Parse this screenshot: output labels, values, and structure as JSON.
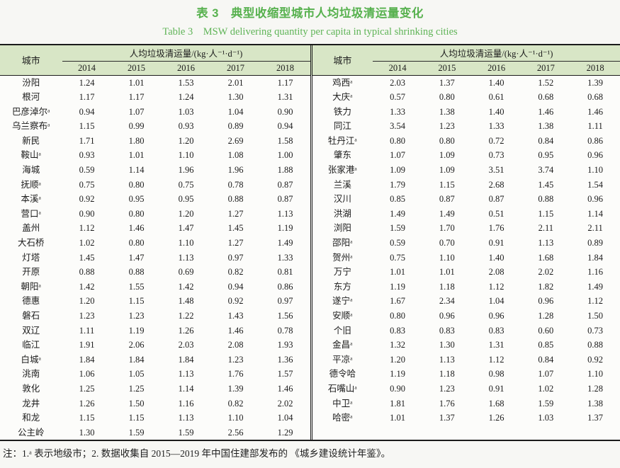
{
  "title": {
    "zh": "表 3　典型收缩型城市人均垃圾清运量变化",
    "en": "Table 3　MSW delivering quantity per capita in typical shrinking cities"
  },
  "header": {
    "city_label": "城市",
    "unit_label": "人均垃圾清运量/(kg·人⁻¹·d⁻¹)",
    "years": [
      "2014",
      "2015",
      "2016",
      "2017",
      "2018"
    ]
  },
  "note": "注：1.ᵃ 表示地级市；2. 数据收集自 2015—2019 年中国住建部发布的 《城乡建设统计年鉴》。",
  "colors": {
    "header_band": "#d8e6c6",
    "title_green": "#5fb457",
    "border": "#1b1b1b"
  },
  "tables": [
    {
      "rows": [
        {
          "city": "汾阳",
          "values": [
            "1.24",
            "1.01",
            "1.53",
            "2.01",
            "1.17"
          ]
        },
        {
          "city": "根河",
          "values": [
            "1.17",
            "1.17",
            "1.24",
            "1.30",
            "1.31"
          ]
        },
        {
          "city": "巴彦淖尔ᵃ",
          "values": [
            "0.94",
            "1.07",
            "1.03",
            "1.04",
            "0.90"
          ]
        },
        {
          "city": "乌兰察布ᵃ",
          "values": [
            "1.15",
            "0.99",
            "0.93",
            "0.89",
            "0.94"
          ]
        },
        {
          "city": "新民",
          "values": [
            "1.71",
            "1.80",
            "1.20",
            "2.69",
            "1.58"
          ]
        },
        {
          "city": "鞍山ᵃ",
          "values": [
            "0.93",
            "1.01",
            "1.10",
            "1.08",
            "1.00"
          ]
        },
        {
          "city": "海城",
          "values": [
            "0.59",
            "1.14",
            "1.96",
            "1.96",
            "1.88"
          ]
        },
        {
          "city": "抚顺ᵃ",
          "values": [
            "0.75",
            "0.80",
            "0.75",
            "0.78",
            "0.87"
          ]
        },
        {
          "city": "本溪ᵃ",
          "values": [
            "0.92",
            "0.95",
            "0.95",
            "0.88",
            "0.87"
          ]
        },
        {
          "city": "营口ᵃ",
          "values": [
            "0.90",
            "0.80",
            "1.20",
            "1.27",
            "1.13"
          ]
        },
        {
          "city": "盖州",
          "values": [
            "1.12",
            "1.46",
            "1.47",
            "1.45",
            "1.19"
          ]
        },
        {
          "city": "大石桥",
          "values": [
            "1.02",
            "0.80",
            "1.10",
            "1.27",
            "1.49"
          ]
        },
        {
          "city": "灯塔",
          "values": [
            "1.45",
            "1.47",
            "1.13",
            "0.97",
            "1.33"
          ]
        },
        {
          "city": "开原",
          "values": [
            "0.88",
            "0.88",
            "0.69",
            "0.82",
            "0.81"
          ]
        },
        {
          "city": "朝阳ᵃ",
          "values": [
            "1.42",
            "1.55",
            "1.42",
            "0.94",
            "0.86"
          ]
        },
        {
          "city": "德惠",
          "values": [
            "1.20",
            "1.15",
            "1.48",
            "0.92",
            "0.97"
          ]
        },
        {
          "city": "磐石",
          "values": [
            "1.23",
            "1.23",
            "1.22",
            "1.43",
            "1.56"
          ]
        },
        {
          "city": "双辽",
          "values": [
            "1.11",
            "1.19",
            "1.26",
            "1.46",
            "0.78"
          ]
        },
        {
          "city": "临江",
          "values": [
            "1.91",
            "2.06",
            "2.03",
            "2.08",
            "1.93"
          ]
        },
        {
          "city": "白城ᵃ",
          "values": [
            "1.84",
            "1.84",
            "1.84",
            "1.23",
            "1.36"
          ]
        },
        {
          "city": "洮南",
          "values": [
            "1.06",
            "1.05",
            "1.13",
            "1.76",
            "1.57"
          ]
        },
        {
          "city": "敦化",
          "values": [
            "1.25",
            "1.25",
            "1.14",
            "1.39",
            "1.46"
          ]
        },
        {
          "city": "龙井",
          "values": [
            "1.26",
            "1.50",
            "1.16",
            "0.82",
            "2.02"
          ]
        },
        {
          "city": "和龙",
          "values": [
            "1.15",
            "1.15",
            "1.13",
            "1.10",
            "1.04"
          ]
        },
        {
          "city": "公主岭",
          "values": [
            "1.30",
            "1.59",
            "1.59",
            "2.56",
            "1.29"
          ]
        }
      ]
    },
    {
      "rows": [
        {
          "city": "鸡西ᵃ",
          "values": [
            "2.03",
            "1.37",
            "1.40",
            "1.52",
            "1.39"
          ]
        },
        {
          "city": "大庆ᵃ",
          "values": [
            "0.57",
            "0.80",
            "0.61",
            "0.68",
            "0.68"
          ]
        },
        {
          "city": "铁力",
          "values": [
            "1.33",
            "1.38",
            "1.40",
            "1.46",
            "1.46"
          ]
        },
        {
          "city": "同江",
          "values": [
            "3.54",
            "1.23",
            "1.33",
            "1.38",
            "1.11"
          ]
        },
        {
          "city": "牡丹江ᵃ",
          "values": [
            "0.80",
            "0.80",
            "0.72",
            "0.84",
            "0.86"
          ]
        },
        {
          "city": "肇东",
          "values": [
            "1.07",
            "1.09",
            "0.73",
            "0.95",
            "0.96"
          ]
        },
        {
          "city": "张家港ᵃ",
          "values": [
            "1.09",
            "1.09",
            "3.51",
            "3.74",
            "1.10"
          ]
        },
        {
          "city": "兰溪",
          "values": [
            "1.79",
            "1.15",
            "2.68",
            "1.45",
            "1.54"
          ]
        },
        {
          "city": "汉川",
          "values": [
            "0.85",
            "0.87",
            "0.87",
            "0.88",
            "0.96"
          ]
        },
        {
          "city": "洪湖",
          "values": [
            "1.49",
            "1.49",
            "0.51",
            "1.15",
            "1.14"
          ]
        },
        {
          "city": "浏阳",
          "values": [
            "1.59",
            "1.70",
            "1.76",
            "2.11",
            "2.11"
          ]
        },
        {
          "city": "邵阳ᵃ",
          "values": [
            "0.59",
            "0.70",
            "0.91",
            "1.13",
            "0.89"
          ]
        },
        {
          "city": "贺州ᵃ",
          "values": [
            "0.75",
            "1.10",
            "1.40",
            "1.68",
            "1.84"
          ]
        },
        {
          "city": "万宁",
          "values": [
            "1.01",
            "1.01",
            "2.08",
            "2.02",
            "1.16"
          ]
        },
        {
          "city": "东方",
          "values": [
            "1.19",
            "1.18",
            "1.12",
            "1.82",
            "1.49"
          ]
        },
        {
          "city": "遂宁ᵃ",
          "values": [
            "1.67",
            "2.34",
            "1.04",
            "0.96",
            "1.12"
          ]
        },
        {
          "city": "安顺ᵃ",
          "values": [
            "0.80",
            "0.96",
            "0.96",
            "1.28",
            "1.50"
          ]
        },
        {
          "city": "个旧",
          "values": [
            "0.83",
            "0.83",
            "0.83",
            "0.60",
            "0.73"
          ]
        },
        {
          "city": "金昌ᵃ",
          "values": [
            "1.32",
            "1.30",
            "1.31",
            "0.85",
            "0.88"
          ]
        },
        {
          "city": "平凉ᵃ",
          "values": [
            "1.20",
            "1.13",
            "1.12",
            "0.84",
            "0.92"
          ]
        },
        {
          "city": "德令哈",
          "values": [
            "1.19",
            "1.18",
            "0.98",
            "1.07",
            "1.10"
          ]
        },
        {
          "city": "石嘴山ᵃ",
          "values": [
            "0.90",
            "1.23",
            "0.91",
            "1.02",
            "1.28"
          ]
        },
        {
          "city": "中卫ᵃ",
          "values": [
            "1.81",
            "1.76",
            "1.68",
            "1.59",
            "1.38"
          ]
        },
        {
          "city": "哈密ᵃ",
          "values": [
            "1.01",
            "1.37",
            "1.26",
            "1.03",
            "1.37"
          ]
        }
      ]
    }
  ]
}
